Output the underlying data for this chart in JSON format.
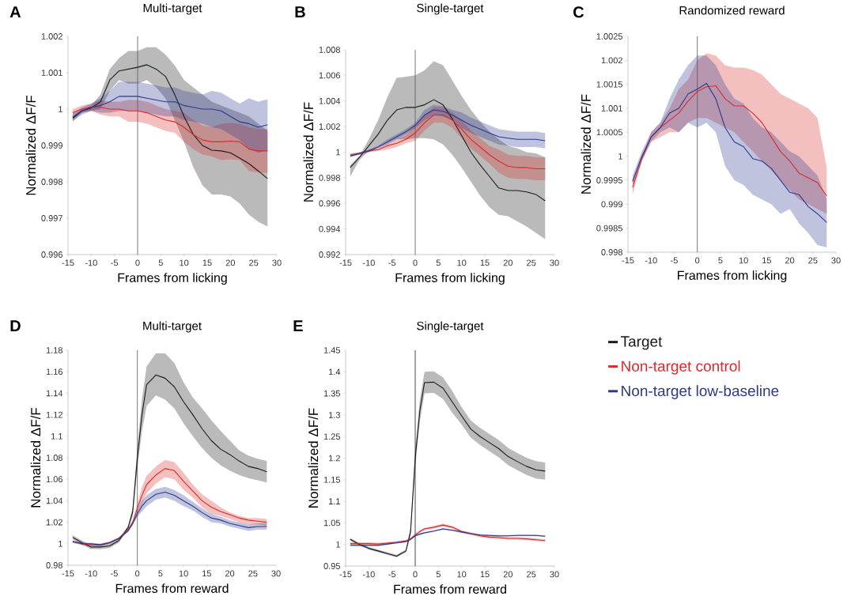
{
  "chart_data": [
    {
      "type": "line",
      "title": "Multi-target",
      "xlabel": "Frames from licking",
      "ylabel": "Normalized ΔF/F",
      "annotations": [
        "A"
      ],
      "x": [
        -14,
        -12,
        -10,
        -8,
        -6,
        -4,
        -2,
        0,
        2,
        4,
        6,
        8,
        10,
        12,
        14,
        16,
        18,
        20,
        22,
        24,
        26,
        28
      ],
      "xlim": [
        -15,
        30
      ],
      "xticks": [
        -15,
        -10,
        -5,
        0,
        5,
        10,
        15,
        20,
        25,
        30
      ],
      "ylim": [
        0.996,
        1.002
      ],
      "yticks": [
        0.996,
        0.997,
        0.998,
        0.999,
        1,
        1.001,
        1.002
      ],
      "ref_lines": [
        {
          "axis": "x",
          "value": 0,
          "color": "#555555"
        }
      ],
      "series": [
        {
          "color": "#1a1a1a",
          "values": [
            0.99975,
            0.99995,
            1.00003,
            1.0002,
            1.0008,
            1.00105,
            1.0011,
            1.00115,
            1.00122,
            1.0011,
            1.0009,
            1.0004,
            0.9998,
            0.9993,
            0.999,
            0.99887,
            0.99885,
            0.9988,
            0.99865,
            0.9985,
            0.9983,
            0.99809
          ],
          "upper": [
            0.9998,
            1.0,
            1.0001,
            1.0004,
            1.0011,
            1.0014,
            1.0016,
            1.0016,
            1.0017,
            1.0017,
            1.0015,
            1.0012,
            1.0008,
            1.0006,
            1.0004,
            1.0002,
            1.0001,
            1.0,
            0.9999,
            0.9998,
            0.9996,
            0.9994
          ],
          "lower": [
            0.99965,
            0.9999,
            0.99995,
            1.0,
            1.0005,
            1.0008,
            1.0007,
            1.0007,
            1.0008,
            1.0006,
            1.0003,
            0.9997,
            0.9991,
            0.9984,
            0.9979,
            0.99765,
            0.99765,
            0.9976,
            0.9974,
            0.9971,
            0.9969,
            0.99677
          ]
        },
        {
          "color": "#d92b2b",
          "values": [
            0.9999,
            1.0,
            1.00005,
            1.00005,
            1.0,
            1.0,
            0.99995,
            0.99995,
            0.9999,
            0.9998,
            0.9997,
            0.99965,
            0.9995,
            0.9993,
            0.99915,
            0.9991,
            0.9991,
            0.99912,
            0.9991,
            0.9989,
            0.99885,
            0.99885
          ],
          "upper": [
            1.0,
            1.0001,
            1.00015,
            1.00025,
            1.0002,
            1.0002,
            1.00025,
            1.00025,
            1.0002,
            1.0001,
            1.0,
            0.99995,
            0.9999,
            0.9997,
            0.99955,
            0.9995,
            0.9996,
            0.99962,
            0.9996,
            0.9995,
            0.99945,
            0.99945
          ],
          "lower": [
            0.9998,
            0.9999,
            0.99995,
            0.99985,
            0.9998,
            0.9998,
            0.99965,
            0.99965,
            0.9996,
            0.9995,
            0.9994,
            0.99935,
            0.9991,
            0.9989,
            0.99875,
            0.9987,
            0.9986,
            0.99862,
            0.9986,
            0.9983,
            0.99825,
            0.99825
          ]
        },
        {
          "color": "#2b3990",
          "values": [
            0.99978,
            0.99995,
            1.00005,
            1.0001,
            1.0002,
            1.00035,
            1.00035,
            1.00035,
            1.0003,
            1.00025,
            1.0002,
            1.0002,
            1.0001,
            1.00005,
            1.0,
            1.0,
            0.99995,
            0.9998,
            0.99965,
            0.9996,
            0.9995,
            0.99957
          ],
          "upper": [
            0.99988,
            1.00005,
            1.00015,
            1.0003,
            1.0005,
            1.00075,
            1.00075,
            1.00075,
            1.0007,
            1.00065,
            1.0006,
            1.0006,
            1.0005,
            1.00045,
            1.0004,
            1.0005,
            1.00045,
            1.0003,
            1.00015,
            1.0003,
            1.0002,
            1.00027
          ],
          "lower": [
            0.99968,
            0.99985,
            0.99995,
            0.9999,
            0.9999,
            0.99995,
            0.99995,
            0.99995,
            0.9999,
            0.99985,
            0.9998,
            0.9998,
            0.9997,
            0.99965,
            0.9996,
            0.9995,
            0.99945,
            0.9993,
            0.99915,
            0.9989,
            0.9988,
            0.99887
          ]
        }
      ]
    },
    {
      "type": "line",
      "title": "Single-target",
      "xlabel": "Frames from licking",
      "ylabel": "Normalized ΔF/F",
      "annotations": [
        "B"
      ],
      "x": [
        -14,
        -12,
        -10,
        -8,
        -6,
        -4,
        -2,
        0,
        2,
        4,
        6,
        8,
        10,
        12,
        14,
        16,
        18,
        20,
        22,
        24,
        26,
        28
      ],
      "xlim": [
        -15,
        30
      ],
      "xticks": [
        -15,
        -10,
        -5,
        0,
        5,
        10,
        15,
        20,
        25,
        30
      ],
      "ylim": [
        0.992,
        1.008
      ],
      "yticks": [
        0.992,
        0.994,
        0.996,
        0.998,
        1,
        1.002,
        1.004,
        1.006,
        1.008
      ],
      "ref_lines": [
        {
          "axis": "x",
          "value": 0,
          "color": "#555555"
        }
      ],
      "series": [
        {
          "color": "#1a1a1a",
          "values": [
            0.9988,
            0.9996,
            1.0005,
            1.0014,
            1.0025,
            1.0033,
            1.0035,
            1.0035,
            1.0037,
            1.0041,
            1.0037,
            1.0026,
            1.0013,
            1.0,
            0.999,
            0.9981,
            0.9972,
            0.997,
            0.997,
            0.9969,
            0.9967,
            0.9962
          ],
          "upper": [
            0.999,
            0.9997,
            1.001,
            1.0025,
            1.0043,
            1.0058,
            1.0059,
            1.006,
            1.0064,
            1.0071,
            1.0068,
            1.0056,
            1.0044,
            1.0033,
            1.0024,
            1.0016,
            1.001,
            1.0005,
            1.0003,
            1.0,
            0.9999,
            0.9996
          ],
          "lower": [
            0.9981,
            0.9994,
            1.0001,
            1.0004,
            1.0008,
            1.001,
            1.001,
            1.0011,
            1.0011,
            1.001,
            1.0006,
            0.9998,
            0.9988,
            0.9977,
            0.9966,
            0.9957,
            0.9951,
            0.995,
            0.9946,
            0.9942,
            0.9937,
            0.9932
          ]
        },
        {
          "color": "#d92b2b",
          "values": [
            0.9998,
            0.9999,
            1.0001,
            1.0002,
            1.0005,
            1.0007,
            1.001,
            1.0015,
            1.0023,
            1.0029,
            1.0029,
            1.0025,
            1.0018,
            1.001,
            1.0004,
            0.9998,
            0.9993,
            0.9989,
            0.9988,
            0.9988,
            0.9987,
            0.9987
          ],
          "upper": [
            0.9999,
            1.0,
            1.0002,
            1.0003,
            1.0008,
            1.001,
            1.0013,
            1.0021,
            1.0029,
            1.0035,
            1.0035,
            1.0031,
            1.0025,
            1.0017,
            1.0011,
            1.0005,
            1.0002,
            0.9998,
            0.9997,
            0.9997,
            0.9996,
            0.9996
          ],
          "lower": [
            0.9997,
            0.9998,
            1.0,
            1.0001,
            1.0002,
            1.0004,
            1.0007,
            1.0009,
            1.0017,
            1.0023,
            1.0023,
            1.0019,
            1.0011,
            1.0003,
            0.9997,
            0.9991,
            0.9984,
            0.998,
            0.9979,
            0.9979,
            0.9978,
            0.9978
          ]
        },
        {
          "color": "#2b3990",
          "values": [
            0.9997,
            0.9999,
            1.0001,
            1.0004,
            1.0008,
            1.0012,
            1.0016,
            1.0021,
            1.0029,
            1.0033,
            1.0032,
            1.0029,
            1.0025,
            1.0021,
            1.0018,
            1.0015,
            1.0012,
            1.0011,
            1.001,
            1.001,
            1.001,
            1.0009
          ],
          "upper": [
            0.9998,
            1.0,
            1.0002,
            1.0005,
            1.001,
            1.0014,
            1.0018,
            1.0023,
            1.0033,
            1.0037,
            1.0036,
            1.0033,
            1.0031,
            1.0027,
            1.0024,
            1.0021,
            1.0018,
            1.0017,
            1.0016,
            1.0016,
            1.0016,
            1.0015
          ],
          "lower": [
            0.9996,
            0.9998,
            1.0,
            1.0003,
            1.0006,
            1.001,
            1.0014,
            1.0019,
            1.0025,
            1.0029,
            1.0028,
            1.0025,
            1.0019,
            1.0015,
            1.0012,
            1.0009,
            1.0006,
            1.0005,
            1.0004,
            1.0004,
            1.0004,
            1.0003
          ]
        }
      ]
    },
    {
      "type": "line",
      "title": "Randomized reward",
      "xlabel": "Frames from licking",
      "ylabel": "Normalized ΔF/F",
      "annotations": [
        "C"
      ],
      "x": [
        -14,
        -12,
        -10,
        -8,
        -6,
        -4,
        -2,
        0,
        2,
        4,
        6,
        8,
        10,
        12,
        14,
        16,
        18,
        20,
        22,
        24,
        26,
        28
      ],
      "xlim": [
        -15,
        30
      ],
      "xticks": [
        -15,
        -10,
        -5,
        0,
        5,
        10,
        15,
        20,
        25,
        30
      ],
      "ylim": [
        0.998,
        1.0025
      ],
      "yticks": [
        0.998,
        0.9985,
        0.999,
        0.9995,
        1,
        1.0005,
        1.001,
        1.0015,
        1.002,
        1.0025
      ],
      "ref_lines": [
        {
          "axis": "x",
          "value": 0,
          "color": "#555555"
        }
      ],
      "series": [
        {
          "color": "#d92b2b",
          "values": [
            0.99935,
            0.99995,
            1.0004,
            1.0006,
            1.00075,
            1.0009,
            1.00115,
            1.00135,
            1.00145,
            1.00147,
            1.0012,
            1.00105,
            1.00105,
            1.0009,
            1.0007,
            1.0004,
            1.0001,
            0.9999,
            0.99965,
            0.99955,
            0.99945,
            0.99917
          ],
          "upper": [
            0.9995,
            1.0,
            1.0005,
            1.0007,
            1.001,
            1.0014,
            1.0016,
            1.002,
            1.00215,
            1.0021,
            1.0019,
            1.00185,
            1.00185,
            1.0018,
            1.0017,
            1.0015,
            1.0013,
            1.0012,
            1.0011,
            1.001,
            1.0008,
            0.99975
          ],
          "lower": [
            0.9992,
            0.9999,
            1.0003,
            1.0004,
            1.0005,
            1.0005,
            1.0007,
            1.0008,
            1.0008,
            1.0007,
            1.0006,
            1.0005,
            1.0003,
            1.0001,
            0.9999,
            0.9997,
            0.9995,
            0.9993,
            0.9991,
            0.999,
            0.9989,
            0.9988
          ]
        },
        {
          "color": "#2b3990",
          "values": [
            0.99948,
            1.0,
            1.0004,
            1.0006,
            1.0009,
            1.001,
            1.0013,
            1.0014,
            1.00152,
            1.0012,
            1.0006,
            1.0003,
            1.0002,
            0.99995,
            0.9999,
            0.99975,
            0.9995,
            0.99925,
            0.9992,
            0.99895,
            0.9988,
            0.99862
          ],
          "upper": [
            0.9996,
            1.0001,
            1.0005,
            1.0007,
            1.0012,
            1.0016,
            1.0019,
            1.0021,
            1.0021,
            1.0019,
            1.0015,
            1.0012,
            1.0011,
            1.0008,
            1.0006,
            1.0005,
            1.0003,
            1.0001,
            1.0,
            0.9998,
            0.9996,
            0.9991
          ],
          "lower": [
            0.9994,
            0.9999,
            1.0003,
            1.0005,
            1.0006,
            1.0005,
            1.0007,
            1.0006,
            1.0007,
            1.0005,
            0.9998,
            0.9995,
            0.9994,
            0.9992,
            0.9991,
            0.999,
            0.9988,
            0.9989,
            0.9986,
            0.9984,
            0.99815,
            0.9981
          ]
        }
      ]
    },
    {
      "type": "line",
      "title": "Multi-target",
      "xlabel": "Frames from reward",
      "ylabel": "Normalized ΔF/F",
      "annotations": [
        "D"
      ],
      "x": [
        -14,
        -12,
        -10,
        -8,
        -6,
        -4,
        -2,
        -1,
        0,
        1,
        2,
        4,
        6,
        8,
        10,
        12,
        14,
        16,
        18,
        20,
        22,
        24,
        26,
        28
      ],
      "xlim": [
        -15,
        30
      ],
      "xticks": [
        -15,
        -10,
        -5,
        0,
        5,
        10,
        15,
        20,
        25,
        30
      ],
      "ylim": [
        0.98,
        1.18
      ],
      "yticks": [
        0.98,
        1,
        1.02,
        1.04,
        1.06,
        1.08,
        1.1,
        1.12,
        1.14,
        1.16,
        1.18
      ],
      "ref_lines": [
        {
          "axis": "x",
          "value": 0,
          "color": "#555555"
        }
      ],
      "series": [
        {
          "color": "#1a1a1a",
          "values": [
            1.006,
            1.001,
            0.997,
            0.997,
            0.998,
            1.003,
            1.015,
            1.03,
            1.08,
            1.12,
            1.148,
            1.157,
            1.154,
            1.146,
            1.132,
            1.12,
            1.107,
            1.096,
            1.088,
            1.083,
            1.077,
            1.072,
            1.07,
            1.067
          ],
          "upper": [
            1.008,
            1.003,
            0.999,
            0.999,
            1.0,
            1.005,
            1.017,
            1.034,
            1.09,
            1.135,
            1.165,
            1.177,
            1.177,
            1.168,
            1.15,
            1.136,
            1.126,
            1.115,
            1.105,
            1.096,
            1.087,
            1.082,
            1.079,
            1.077
          ],
          "lower": [
            1.004,
            0.999,
            0.995,
            0.995,
            0.996,
            1.001,
            1.013,
            1.026,
            1.07,
            1.105,
            1.128,
            1.138,
            1.134,
            1.126,
            1.112,
            1.1,
            1.089,
            1.08,
            1.073,
            1.068,
            1.064,
            1.061,
            1.059,
            1.057
          ]
        },
        {
          "color": "#d92b2b",
          "values": [
            1.002,
            1.0,
            0.999,
            0.999,
            1.001,
            1.005,
            1.013,
            1.02,
            1.033,
            1.045,
            1.055,
            1.064,
            1.07,
            1.068,
            1.058,
            1.049,
            1.04,
            1.034,
            1.03,
            1.027,
            1.024,
            1.022,
            1.021,
            1.02
          ],
          "upper": [
            1.003,
            1.001,
            1.0,
            1.0,
            1.002,
            1.006,
            1.014,
            1.022,
            1.037,
            1.053,
            1.063,
            1.072,
            1.078,
            1.076,
            1.066,
            1.055,
            1.046,
            1.04,
            1.034,
            1.029,
            1.026,
            1.024,
            1.024,
            1.023
          ],
          "lower": [
            1.001,
            0.999,
            0.998,
            0.998,
            1.0,
            1.004,
            1.012,
            1.018,
            1.029,
            1.037,
            1.047,
            1.056,
            1.062,
            1.06,
            1.05,
            1.043,
            1.034,
            1.028,
            1.026,
            1.023,
            1.02,
            1.018,
            1.018,
            1.017
          ]
        },
        {
          "color": "#2b3990",
          "values": [
            1.002,
            1.0,
            1.0,
            0.999,
            1.001,
            1.005,
            1.012,
            1.019,
            1.028,
            1.035,
            1.04,
            1.046,
            1.048,
            1.045,
            1.04,
            1.035,
            1.029,
            1.024,
            1.022,
            1.019,
            1.017,
            1.015,
            1.016,
            1.016
          ],
          "upper": [
            1.003,
            1.001,
            1.001,
            1.0,
            1.002,
            1.006,
            1.013,
            1.021,
            1.031,
            1.04,
            1.045,
            1.051,
            1.053,
            1.05,
            1.045,
            1.039,
            1.033,
            1.028,
            1.025,
            1.022,
            1.02,
            1.018,
            1.019,
            1.019
          ],
          "lower": [
            1.001,
            0.999,
            0.999,
            0.998,
            1.0,
            1.004,
            1.011,
            1.017,
            1.025,
            1.03,
            1.035,
            1.041,
            1.043,
            1.04,
            1.035,
            1.031,
            1.025,
            1.02,
            1.019,
            1.016,
            1.014,
            1.012,
            1.013,
            1.013
          ]
        }
      ]
    },
    {
      "type": "line",
      "title": "Single-target",
      "xlabel": "Frames from reward",
      "ylabel": "Normalized ΔF/F",
      "annotations": [
        "E"
      ],
      "legend": "right",
      "x": [
        -14,
        -12,
        -10,
        -8,
        -6,
        -4,
        -2,
        -1,
        0,
        1,
        2,
        4,
        6,
        8,
        10,
        12,
        14,
        16,
        18,
        20,
        22,
        24,
        26,
        28
      ],
      "xlim": [
        -15,
        30
      ],
      "xticks": [
        -15,
        -10,
        -5,
        0,
        5,
        10,
        15,
        20,
        25,
        30
      ],
      "ylim": [
        0.95,
        1.45
      ],
      "yticks": [
        0.95,
        1,
        1.05,
        1.1,
        1.15,
        1.2,
        1.25,
        1.3,
        1.35,
        1.4,
        1.45
      ],
      "ref_lines": [
        {
          "axis": "x",
          "value": 0,
          "color": "#1a1a1a"
        }
      ],
      "series": [
        {
          "name": "Target",
          "color": "#1a1a1a",
          "values": [
            1.012,
            1.0,
            0.991,
            0.985,
            0.979,
            0.973,
            0.985,
            1.03,
            1.2,
            1.31,
            1.375,
            1.376,
            1.362,
            1.33,
            1.298,
            1.267,
            1.25,
            1.236,
            1.222,
            1.204,
            1.192,
            1.181,
            1.173,
            1.17
          ],
          "upper": [
            1.015,
            1.003,
            0.994,
            0.988,
            0.982,
            0.976,
            0.988,
            1.04,
            1.22,
            1.335,
            1.4,
            1.401,
            1.387,
            1.355,
            1.318,
            1.287,
            1.27,
            1.256,
            1.242,
            1.224,
            1.212,
            1.201,
            1.193,
            1.19
          ],
          "lower": [
            1.009,
            0.997,
            0.988,
            0.982,
            0.976,
            0.97,
            0.982,
            1.02,
            1.18,
            1.285,
            1.35,
            1.351,
            1.337,
            1.305,
            1.278,
            1.247,
            1.23,
            1.216,
            1.202,
            1.184,
            1.172,
            1.161,
            1.153,
            1.15
          ]
        },
        {
          "name": "Non-target control",
          "color": "#d92b2b",
          "values": [
            1.002,
            1.002,
            1.002,
            1.001,
            1.003,
            1.005,
            1.008,
            1.013,
            1.022,
            1.03,
            1.036,
            1.04,
            1.045,
            1.04,
            1.03,
            1.025,
            1.02,
            1.017,
            1.016,
            1.014,
            1.014,
            1.013,
            1.011,
            1.009
          ],
          "upper": [
            1.005,
            1.005,
            1.005,
            1.004,
            1.006,
            1.008,
            1.011,
            1.016,
            1.025,
            1.033,
            1.039,
            1.043,
            1.048,
            1.043,
            1.033,
            1.028,
            1.023,
            1.02,
            1.019,
            1.017,
            1.017,
            1.016,
            1.014,
            1.012
          ],
          "lower": [
            0.999,
            0.999,
            0.999,
            0.998,
            1.0,
            1.002,
            1.005,
            1.01,
            1.019,
            1.027,
            1.033,
            1.037,
            1.042,
            1.037,
            1.027,
            1.022,
            1.017,
            1.014,
            1.013,
            1.011,
            1.011,
            1.01,
            1.008,
            1.006
          ]
        },
        {
          "name": "Non-target low-baseline",
          "color": "#2b3990",
          "values": [
            0.998,
            0.998,
            0.998,
            0.998,
            1.001,
            1.004,
            1.007,
            1.012,
            1.02,
            1.024,
            1.027,
            1.031,
            1.036,
            1.033,
            1.029,
            1.025,
            1.022,
            1.021,
            1.02,
            1.02,
            1.021,
            1.021,
            1.021,
            1.019
          ],
          "upper": [
            1.0,
            1.0,
            1.0,
            1.0,
            1.003,
            1.006,
            1.009,
            1.014,
            1.022,
            1.026,
            1.029,
            1.033,
            1.038,
            1.035,
            1.031,
            1.027,
            1.024,
            1.023,
            1.022,
            1.022,
            1.023,
            1.023,
            1.023,
            1.021
          ],
          "lower": [
            0.996,
            0.996,
            0.996,
            0.996,
            0.999,
            1.002,
            1.005,
            1.01,
            1.018,
            1.022,
            1.025,
            1.029,
            1.034,
            1.031,
            1.027,
            1.023,
            1.02,
            1.019,
            1.018,
            1.018,
            1.019,
            1.019,
            1.019,
            1.017
          ]
        }
      ]
    }
  ]
}
